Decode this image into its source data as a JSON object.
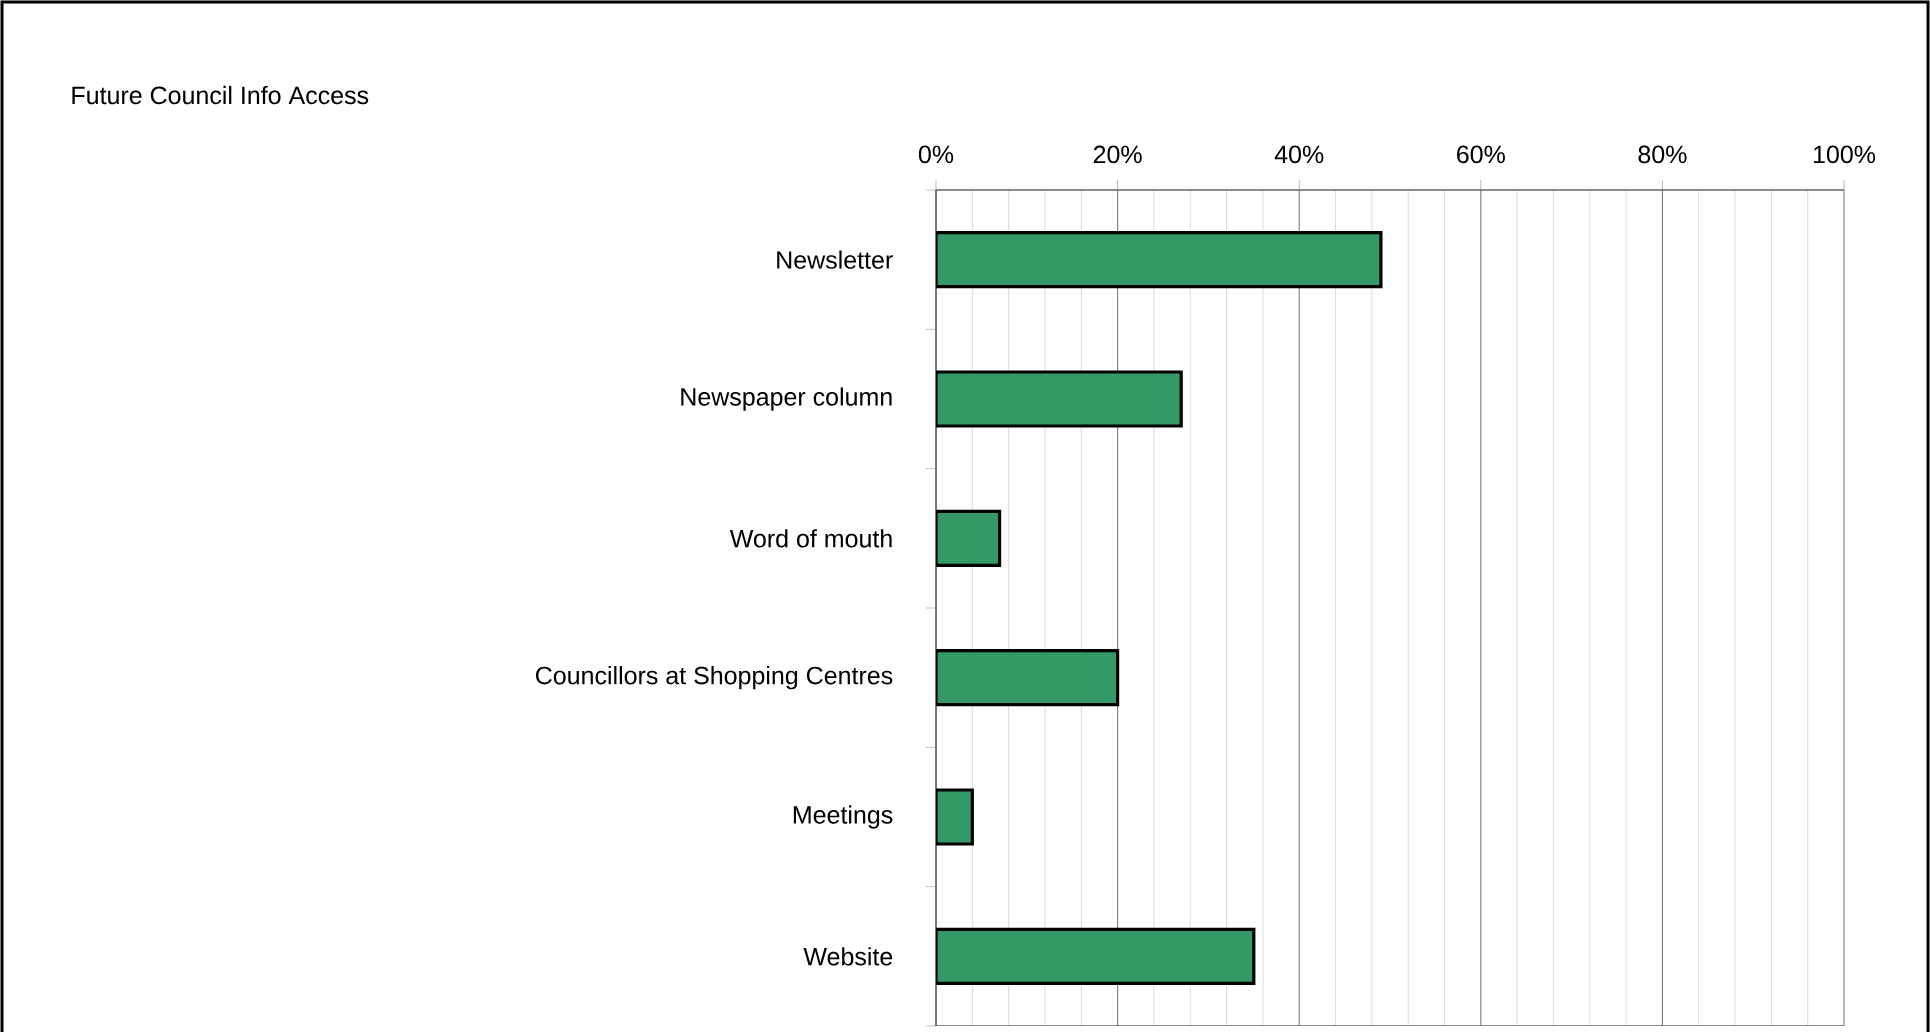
{
  "chart_data": {
    "type": "bar",
    "orientation": "horizontal",
    "title": "Future Council Info Access",
    "categories": [
      "Newsletter",
      "Newspaper column",
      "Word of mouth",
      "Councillors at Shopping Centres",
      "Meetings",
      "Website"
    ],
    "values": [
      49,
      27,
      7,
      20,
      4,
      35
    ],
    "color": "#339966",
    "xlim": [
      0,
      100
    ],
    "xticks": [
      {
        "value": 0,
        "label": "0%"
      },
      {
        "value": 20,
        "label": "20%"
      },
      {
        "value": 40,
        "label": "40%"
      },
      {
        "value": 60,
        "label": "60%"
      },
      {
        "value": 80,
        "label": "80%"
      },
      {
        "value": 100,
        "label": "100%"
      }
    ],
    "grid": "x"
  }
}
